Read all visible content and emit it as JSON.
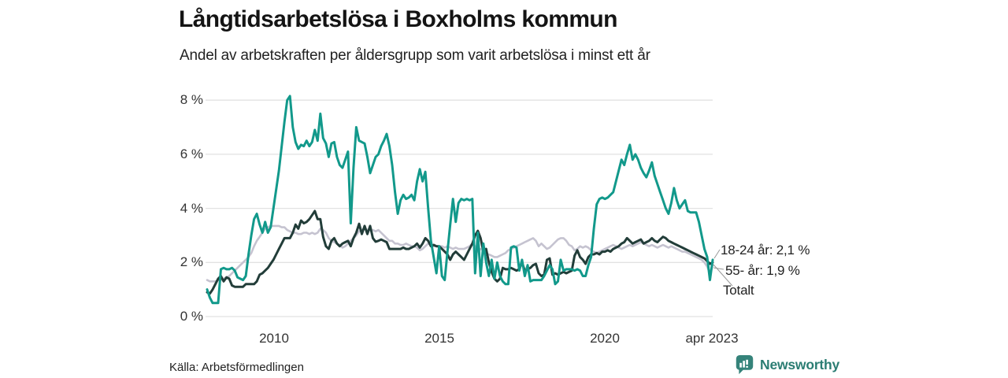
{
  "header": {
    "title": "Långtidsarbetslösa i Boxholms kommun",
    "subtitle": "Andel av arbetskraften per åldersgrupp som varit arbetslösa i minst ett år"
  },
  "axes": {
    "y_ticks": [
      "8 %",
      "6 %",
      "4 %",
      "2 %",
      "0 %"
    ],
    "x_ticks": [
      "2010",
      "2015",
      "2020",
      "apr 2023"
    ]
  },
  "annotations": {
    "series_labels": [
      {
        "text": "18-24 år: 2,1 %"
      },
      {
        "text": "55- år: 1,9 %"
      },
      {
        "text": "Totalt"
      }
    ]
  },
  "source": {
    "label": "Källa: Arbetsförmedlingen"
  },
  "branding": {
    "name": "Newsworthy",
    "icon": "newsworthy-speech-bubble-bar-chart-icon",
    "color": "#2b7d73"
  },
  "colors": {
    "accent_teal": "#12998b",
    "dark_total": "#223d39",
    "light_gray": "#c5c3d0",
    "gridline": "#e2e2e2",
    "leader_line": "#999999"
  },
  "chart_data": {
    "type": "line",
    "title": "Långtidsarbetslösa i Boxholms kommun",
    "subtitle": "Andel av arbetskraften per åldersgrupp som varit arbetslösa i minst ett år",
    "x_start": "2008-01",
    "x_end": "2023-04",
    "x_interval": "monthly",
    "xticks": [
      "2010",
      "2015",
      "2020",
      "apr 2023"
    ],
    "ylim": [
      0,
      8.5
    ],
    "yticks": [
      8,
      6,
      4,
      2,
      0
    ],
    "ytick_suffix": " %",
    "grid": "horizontal-only",
    "legend_position": "end-of-line-labels",
    "series": [
      {
        "name": "55- år",
        "color": "#c5c3d0",
        "end_value": 1.9,
        "end_label": "55- år: 1,9 %",
        "values": [
          1.35,
          1.3,
          1.3,
          1.3,
          1.35,
          1.35,
          1.4,
          1.45,
          1.5,
          1.6,
          1.7,
          1.8,
          1.9,
          2.0,
          2.1,
          2.2,
          2.35,
          2.6,
          2.8,
          2.95,
          3.1,
          3.25,
          3.3,
          3.35,
          3.35,
          3.35,
          3.35,
          3.3,
          3.3,
          3.2,
          3.15,
          3.1,
          3.1,
          3.05,
          3.05,
          3.1,
          3.1,
          3.05,
          3.1,
          3.05,
          3.1,
          3.25,
          3.2,
          3.1,
          2.9,
          2.8,
          2.75,
          2.7,
          2.65,
          2.55,
          2.6,
          2.7,
          2.8,
          2.9,
          3.0,
          3.15,
          3.2,
          3.25,
          3.2,
          3.2,
          3.2,
          3.15,
          3.2,
          3.1,
          3.0,
          2.9,
          2.8,
          2.8,
          2.7,
          2.7,
          2.65,
          2.65,
          2.7,
          2.65,
          2.6,
          2.6,
          2.55,
          2.45,
          2.5,
          2.6,
          2.7,
          2.65,
          2.6,
          2.6,
          2.6,
          2.6,
          2.55,
          2.6,
          2.55,
          2.5,
          2.55,
          2.5,
          2.5,
          2.5,
          2.55,
          2.6,
          2.7,
          2.6,
          2.4,
          2.5,
          2.45,
          2.3,
          2.3,
          2.25,
          2.2,
          2.2,
          2.25,
          2.3,
          2.35,
          2.45,
          2.5,
          2.55,
          2.6,
          2.65,
          2.7,
          2.75,
          2.8,
          2.85,
          2.9,
          2.8,
          2.6,
          2.7,
          2.6,
          2.5,
          2.55,
          2.65,
          2.75,
          2.85,
          2.9,
          2.9,
          2.8,
          2.65,
          2.6,
          2.45,
          2.5,
          2.6,
          2.55,
          2.6,
          2.55,
          2.45,
          2.4,
          2.35,
          2.4,
          2.45,
          2.5,
          2.55,
          2.6,
          2.65,
          2.6,
          2.55,
          2.5,
          2.55,
          2.6,
          2.65,
          2.6,
          2.65,
          2.7,
          2.75,
          2.7,
          2.65,
          2.6,
          2.65,
          2.6,
          2.55,
          2.6,
          2.65,
          2.6,
          2.55,
          2.6,
          2.55,
          2.5,
          2.45,
          2.4,
          2.4,
          2.35,
          2.3,
          2.25,
          2.2,
          2.15,
          2.1,
          2.0,
          1.85,
          1.6,
          1.9
        ]
      },
      {
        "name": "Totalt",
        "color": "#223d39",
        "end_value": 2.0,
        "end_label": "Totalt",
        "values": [
          0.9,
          0.85,
          1.0,
          1.2,
          1.4,
          1.5,
          1.3,
          1.45,
          1.4,
          1.15,
          1.1,
          1.1,
          1.1,
          1.1,
          1.2,
          1.2,
          1.2,
          1.2,
          1.3,
          1.55,
          1.6,
          1.7,
          1.8,
          1.95,
          2.1,
          2.3,
          2.5,
          2.7,
          2.9,
          2.9,
          2.9,
          3.1,
          3.4,
          3.25,
          3.55,
          3.45,
          3.5,
          3.6,
          3.75,
          3.9,
          3.6,
          3.6,
          2.95,
          2.6,
          2.5,
          2.8,
          2.9,
          2.7,
          2.6,
          2.7,
          2.75,
          2.8,
          2.6,
          2.9,
          3.1,
          3.43,
          3.05,
          3.35,
          3.05,
          3.35,
          2.9,
          2.77,
          2.8,
          2.85,
          2.8,
          2.75,
          2.5,
          2.5,
          2.5,
          2.5,
          2.5,
          2.55,
          2.5,
          2.5,
          2.55,
          2.6,
          2.7,
          2.55,
          2.7,
          2.9,
          2.8,
          2.6,
          2.65,
          2.6,
          2.6,
          2.5,
          2.4,
          2.3,
          2.1,
          2.3,
          2.4,
          2.3,
          2.2,
          2.1,
          2.3,
          2.5,
          2.7,
          3.0,
          3.17,
          2.9,
          2.4,
          2.5,
          2.0,
          1.65,
          1.4,
          1.3,
          1.4,
          1.8,
          1.75,
          1.75,
          1.8,
          1.75,
          1.7,
          1.75,
          2.0,
          1.7,
          1.75,
          1.8,
          1.9,
          1.95,
          1.6,
          1.5,
          1.55,
          2.1,
          2.15,
          1.55,
          1.6,
          1.55,
          1.6,
          1.65,
          1.6,
          1.65,
          1.7,
          2.25,
          2.45,
          2.2,
          2.1,
          1.95,
          2.2,
          2.3,
          2.3,
          2.35,
          2.3,
          2.4,
          2.4,
          2.45,
          2.4,
          2.5,
          2.55,
          2.6,
          2.7,
          2.75,
          2.9,
          2.8,
          2.7,
          2.75,
          2.8,
          2.85,
          2.7,
          2.75,
          2.8,
          2.9,
          2.8,
          2.75,
          2.85,
          2.95,
          2.9,
          2.8,
          2.75,
          2.7,
          2.65,
          2.6,
          2.55,
          2.5,
          2.45,
          2.4,
          2.35,
          2.3,
          2.25,
          2.2,
          2.15,
          2.05,
          1.95,
          2.0
        ]
      },
      {
        "name": "18-24 år",
        "color": "#12998b",
        "end_value": 2.1,
        "end_label": "18-24 år: 2,1 %",
        "values": [
          1.0,
          0.7,
          0.5,
          0.5,
          0.5,
          1.75,
          1.8,
          1.75,
          1.75,
          1.8,
          1.7,
          1.45,
          1.4,
          1.35,
          1.5,
          2.3,
          3.0,
          3.6,
          3.8,
          3.4,
          3.1,
          3.5,
          3.1,
          3.3,
          4.0,
          4.7,
          5.4,
          6.3,
          7.2,
          8.0,
          8.15,
          7.0,
          6.45,
          6.2,
          6.35,
          6.3,
          6.5,
          6.3,
          6.45,
          6.9,
          6.5,
          7.5,
          6.6,
          6.4,
          5.9,
          6.4,
          6.45,
          5.9,
          5.6,
          5.5,
          5.8,
          6.1,
          3.45,
          5.5,
          7.0,
          6.5,
          6.45,
          6.4,
          5.9,
          5.3,
          5.6,
          5.9,
          6.0,
          6.3,
          6.5,
          6.75,
          6.3,
          5.6,
          4.6,
          3.8,
          4.3,
          4.5,
          4.35,
          4.4,
          4.5,
          4.3,
          5.0,
          5.45,
          5.0,
          5.35,
          4.0,
          2.8,
          2.2,
          1.6,
          2.6,
          1.5,
          1.35,
          2.4,
          3.4,
          4.35,
          3.5,
          4.2,
          4.35,
          4.3,
          4.35,
          4.3,
          4.35,
          1.6,
          3.1,
          1.5,
          2.7,
          2.0,
          1.5,
          2.1,
          1.4,
          2.0,
          1.5,
          1.3,
          1.2,
          1.2,
          2.55,
          2.6,
          2.55,
          1.7,
          2.1,
          1.5,
          1.9,
          1.3,
          1.35,
          1.35,
          1.35,
          1.35,
          1.5,
          1.7,
          1.9,
          1.75,
          1.2,
          1.3,
          2.1,
          1.7,
          1.75,
          1.75,
          1.75,
          1.7,
          1.75,
          1.7,
          1.5,
          1.5,
          1.9,
          2.2,
          3.25,
          4.15,
          4.35,
          4.4,
          4.35,
          4.4,
          4.5,
          4.6,
          5.0,
          5.4,
          5.8,
          5.6,
          6.0,
          6.35,
          5.8,
          6.0,
          5.8,
          5.5,
          5.3,
          5.15,
          5.4,
          5.7,
          5.2,
          4.9,
          4.6,
          4.3,
          4.0,
          3.8,
          4.2,
          4.75,
          4.3,
          4.0,
          4.15,
          4.3,
          3.9,
          3.85,
          3.85,
          3.85,
          3.5,
          3.0,
          2.5,
          2.2,
          1.35,
          2.1
        ]
      }
    ]
  }
}
